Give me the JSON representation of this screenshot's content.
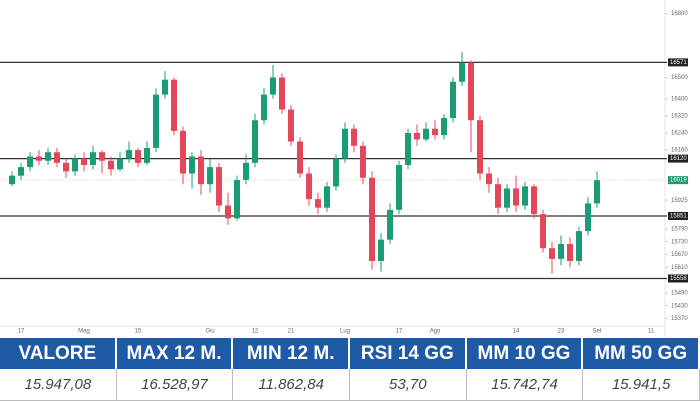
{
  "chart_data": {
    "type": "candlestick",
    "categories": [
      null,
      "17",
      null,
      null,
      null,
      null,
      null,
      null,
      "Mag",
      null,
      null,
      null,
      null,
      null,
      "15",
      null,
      null,
      null,
      null,
      null,
      null,
      null,
      "Giu",
      null,
      null,
      null,
      null,
      "12",
      null,
      null,
      null,
      "21",
      null,
      null,
      null,
      null,
      null,
      "Lug",
      null,
      null,
      null,
      null,
      null,
      "17",
      null,
      null,
      null,
      "Ago",
      null,
      null,
      null,
      null,
      null,
      null,
      null,
      null,
      "14",
      null,
      null,
      null,
      null,
      "23",
      null,
      null,
      null,
      "Set",
      null,
      null,
      null,
      null,
      null,
      "11"
    ],
    "open": [
      16000,
      16040,
      16080,
      16130,
      16110,
      16150,
      16100,
      16060,
      16120,
      16090,
      16150,
      16110,
      16070,
      16120,
      16160,
      16100,
      16170,
      16420,
      16490,
      16250,
      16050,
      16130,
      16000,
      16080,
      15900,
      15840,
      16020,
      16100,
      16300,
      16420,
      16500,
      16350,
      16200,
      16050,
      15930,
      15890,
      15990,
      16120,
      16260,
      16180,
      16030,
      15640,
      15740,
      15880,
      16090,
      16240,
      16210,
      16260,
      16230,
      16310,
      16480,
      16570,
      16300,
      16050,
      16000,
      15890,
      15980,
      15900,
      15990,
      15860,
      15700,
      15650,
      15720,
      15640,
      15780,
      15910,
      null,
      null,
      null,
      null,
      null,
      null
    ],
    "high": [
      16060,
      16100,
      16150,
      16160,
      16170,
      16170,
      16120,
      16140,
      16150,
      16180,
      16160,
      16130,
      16150,
      16200,
      16170,
      16200,
      16450,
      16530,
      16500,
      16270,
      16150,
      16160,
      16120,
      16100,
      15960,
      16040,
      16140,
      16330,
      16450,
      16560,
      16520,
      16370,
      16220,
      16080,
      15960,
      16010,
      16140,
      16290,
      16280,
      16200,
      16060,
      15770,
      15910,
      16110,
      16260,
      16280,
      16290,
      16300,
      16330,
      16500,
      16620,
      16580,
      16320,
      16080,
      16030,
      16000,
      16040,
      16010,
      16000,
      15880,
      15730,
      15760,
      15750,
      15800,
      15940,
      16060,
      null,
      null,
      null,
      null,
      null,
      null
    ],
    "low": [
      15990,
      16020,
      16060,
      16090,
      16090,
      16080,
      16030,
      16040,
      16060,
      16070,
      16050,
      16040,
      16060,
      16100,
      16080,
      16090,
      16150,
      16400,
      16230,
      16000,
      15980,
      15950,
      15960,
      15870,
      15810,
      15830,
      16000,
      16080,
      16280,
      16400,
      16330,
      16180,
      16030,
      15900,
      15860,
      15870,
      15970,
      16100,
      16150,
      16000,
      15600,
      15590,
      15720,
      15860,
      16070,
      16180,
      16200,
      16210,
      16210,
      16290,
      16460,
      16150,
      16020,
      15960,
      15860,
      15870,
      15870,
      15880,
      15840,
      15680,
      15580,
      15620,
      15610,
      15620,
      15760,
      15890,
      null,
      null,
      null,
      null,
      null,
      null
    ],
    "close": [
      16040,
      16080,
      16130,
      16110,
      16150,
      16100,
      16060,
      16120,
      16090,
      16150,
      16110,
      16070,
      16120,
      16160,
      16100,
      16170,
      16420,
      16490,
      16250,
      16050,
      16130,
      16000,
      16080,
      15900,
      15840,
      16020,
      16100,
      16300,
      16420,
      16500,
      16350,
      16200,
      16050,
      15930,
      15890,
      15990,
      16120,
      16260,
      16180,
      16030,
      15640,
      15740,
      15880,
      16090,
      16240,
      16210,
      16260,
      16230,
      16310,
      16480,
      16570,
      16300,
      16050,
      16000,
      15890,
      15980,
      15900,
      15990,
      15860,
      15700,
      15650,
      15720,
      15640,
      15780,
      15910,
      16019,
      null,
      null,
      null,
      null,
      null,
      null
    ],
    "up_color": "#1c9c74",
    "down_color": "#e5475a",
    "ylim": [
      15340,
      16840
    ],
    "yticks": [
      15370,
      15430,
      15490,
      15610,
      15670,
      15730,
      15790,
      15925,
      16160,
      16240,
      16320,
      16400,
      16500,
      16800
    ],
    "levels": [
      16571,
      16120,
      15851,
      15558
    ],
    "last_price": 16019
  },
  "table": {
    "headers": [
      "VALORE",
      "MAX 12 M.",
      "MIN 12 M.",
      "RSI 14 GG",
      "MM 10 GG",
      "MM 50 GG"
    ],
    "values": [
      "15.947,08",
      "16.528,97",
      "11.862,84",
      "53,70",
      "15.742,74",
      "15.941,5"
    ]
  }
}
